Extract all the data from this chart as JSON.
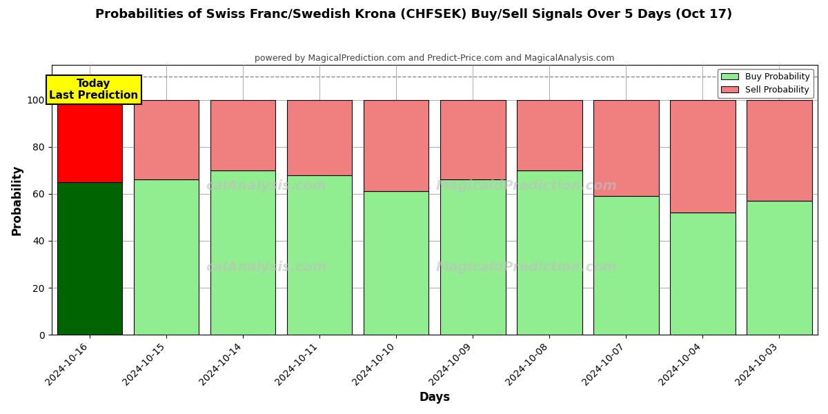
{
  "title": "Probabilities of Swiss Franc/Swedish Krona (CHFSEK) Buy/Sell Signals Over 5 Days (Oct 17)",
  "subtitle": "powered by MagicalPrediction.com and Predict-Price.com and MagicalAnalysis.com",
  "xlabel": "Days",
  "ylabel": "Probability",
  "dates": [
    "2024-10-16",
    "2024-10-15",
    "2024-10-14",
    "2024-10-11",
    "2024-10-10",
    "2024-10-09",
    "2024-10-08",
    "2024-10-07",
    "2024-10-04",
    "2024-10-03"
  ],
  "buy_values": [
    65,
    66,
    70,
    68,
    61,
    66,
    70,
    59,
    52,
    57
  ],
  "sell_values": [
    35,
    34,
    30,
    32,
    39,
    34,
    30,
    41,
    48,
    43
  ],
  "today_bar_buy_color": "#006400",
  "today_bar_sell_color": "#FF0000",
  "regular_bar_buy_color": "#90EE90",
  "regular_bar_sell_color": "#F08080",
  "legend_buy_color": "#90EE90",
  "legend_sell_color": "#F08080",
  "today_annotation_text": "Today\nLast Prediction",
  "today_annotation_bg": "#FFFF00",
  "dashed_line_y": 110,
  "ylim": [
    0,
    115
  ],
  "yticks": [
    0,
    20,
    40,
    60,
    80,
    100
  ],
  "bar_width": 0.85,
  "bar_edgecolor": "#000000",
  "grid_color": "#888888",
  "background_color": "#FFFFFF",
  "figsize": [
    12.0,
    6.0
  ],
  "dpi": 100
}
